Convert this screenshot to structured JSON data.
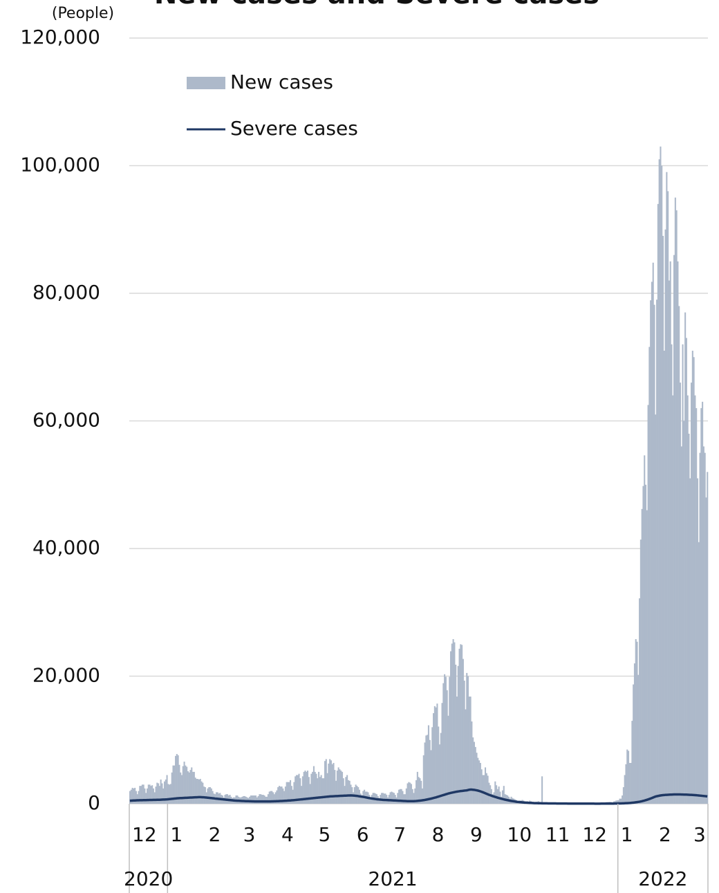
{
  "chart_data": {
    "type": "bar",
    "title": "New cases and Severe cases",
    "y_unit": "(People)",
    "categories": [
      "12",
      "1",
      "2",
      "3",
      "4",
      "5",
      "6",
      "7",
      "8",
      "9",
      "10",
      "11",
      "12",
      "1",
      "2",
      "3"
    ],
    "years": [
      "2020",
      "2021",
      "2022"
    ],
    "ylim": [
      0,
      120000
    ],
    "yticks": [
      0,
      {
        "value": 20000,
        "label": "20,000"
      },
      {
        "value": 40000,
        "label": "40,000"
      },
      {
        "value": 60000,
        "label": "60,000"
      },
      {
        "value": 80000,
        "label": "80,000"
      },
      {
        "value": 100000,
        "label": "100,000"
      },
      {
        "value": 120000,
        "label": "120,000"
      }
    ],
    "grid": true,
    "series": [
      {
        "name": "New cases",
        "type": "bar",
        "color": "#adb9ca",
        "values": [
          [
            2000,
            2200,
            2500,
            2400,
            2500,
            2000,
            1500,
            2000,
            2800,
            2800,
            3000,
            3000,
            2400,
            1700,
            2400,
            3000,
            3000,
            2800,
            2900,
            2400,
            1800,
            2700,
            3300,
            3200,
            2800,
            3800,
            3200,
            2400,
            3500,
            3800,
            4500
          ],
          [
            3100,
            3000,
            3100,
            4900,
            6000,
            6000,
            7500,
            7800,
            7600,
            6100,
            4900,
            4500,
            5900,
            6600,
            6000,
            5800,
            5100,
            4900,
            5300,
            5700,
            5000,
            5000,
            4100,
            3900,
            3900,
            3800,
            3900,
            3500,
            3300,
            2700,
            2600
          ],
          [
            1800,
            2400,
            2600,
            2600,
            2400,
            2000,
            1600,
            1500,
            1800,
            1800,
            1600,
            1700,
            1400,
            1300,
            1000,
            1400,
            1500,
            1500,
            1300,
            1400,
            1100,
            900,
            1000,
            1000,
            1300,
            1300,
            1100,
            1000
          ],
          [
            1000,
            1100,
            1200,
            1200,
            1100,
            1000,
            900,
            1100,
            1300,
            1300,
            1300,
            1300,
            1300,
            1000,
            1200,
            1500,
            1500,
            1400,
            1400,
            1300,
            1100,
            1100,
            1500,
            1900,
            2000,
            2000,
            1800,
            1500,
            1800,
            2100,
            2600
          ],
          [
            2800,
            2700,
            2700,
            2400,
            2000,
            2700,
            3400,
            3400,
            3400,
            3700,
            2800,
            2200,
            3400,
            4300,
            4500,
            4500,
            4700,
            4000,
            2800,
            4300,
            5000,
            5200,
            5000,
            5200,
            4200,
            3100,
            4700,
            5000,
            5900,
            5000
          ],
          [
            4700,
            4000,
            5000,
            4200,
            4500,
            4000,
            4000,
            6700,
            7000,
            4800,
            6300,
            7000,
            6800,
            6200,
            6400,
            5300,
            3600,
            5200,
            5700,
            5400,
            5200,
            5000,
            4000,
            2800,
            4200,
            4500,
            3700,
            3600,
            3000,
            2600,
            1800
          ],
          [
            2600,
            3000,
            2800,
            2600,
            2200,
            1600,
            1200,
            2000,
            2200,
            1900,
            1900,
            1800,
            1400,
            1000,
            1400,
            1700,
            1700,
            1600,
            1500,
            1200,
            900,
            1400,
            1700,
            1700,
            1600,
            1600,
            1400,
            1000,
            1400,
            1800
          ],
          [
            1900,
            1800,
            1700,
            1400,
            1000,
            1700,
            2200,
            2300,
            2300,
            2000,
            1500,
            1500,
            2400,
            3200,
            3400,
            3300,
            3100,
            2300,
            1700,
            2400,
            3700,
            5000,
            4200,
            4000,
            3600,
            2400,
            7600,
            9600,
            10700,
            10800,
            12300
          ],
          [
            10000,
            8400,
            12000,
            14200,
            15300,
            15100,
            15700,
            12100,
            9300,
            11100,
            15800,
            18900,
            20300,
            19900,
            17800,
            13800,
            19900,
            23900,
            25100,
            25800,
            25300,
            21800,
            16800,
            21600,
            24300,
            25000,
            24900,
            22700,
            19300,
            14800,
            20500
          ],
          [
            20000,
            16800,
            16800,
            12900,
            10400,
            9700,
            8900,
            8000,
            7200,
            6800,
            6400,
            5400,
            4500,
            4500,
            5700,
            4800,
            4400,
            3300,
            2900,
            2300,
            1500,
            1800,
            3500,
            2900,
            2300,
            2700,
            1900,
            1100,
            2100,
            2800
          ],
          [
            1500,
            1400,
            1300,
            1100,
            800,
            1100,
            900,
            800,
            700,
            600,
            400,
            400,
            500,
            500,
            600,
            500,
            400,
            300,
            400,
            300,
            500,
            400,
            300,
            300,
            200,
            300,
            300,
            400,
            300,
            250,
            4300
          ],
          [
            90,
            180,
            200,
            160,
            150,
            120,
            150,
            80,
            150,
            200,
            190,
            170,
            160,
            120,
            80,
            130,
            120,
            140,
            130,
            120,
            90,
            50,
            100,
            110,
            120,
            110,
            100,
            90,
            80,
            110
          ],
          [
            130,
            110,
            150,
            110,
            120,
            110,
            100,
            130,
            150,
            140,
            130,
            120,
            120,
            100,
            170,
            170,
            200,
            190,
            200,
            170,
            170,
            260,
            270,
            280,
            300,
            280,
            190,
            370,
            400,
            500,
            530
          ],
          [
            550,
            800,
            800,
            1300,
            2600,
            4500,
            6200,
            8500,
            8300,
            6400,
            6400,
            13000,
            18700,
            22000,
            25800,
            25400,
            20200,
            32200,
            41400,
            46200,
            49800,
            54600,
            50000,
            46000,
            62500,
            71600,
            78900,
            81800,
            84800,
            78200,
            61000
          ],
          [
            79000,
            94000,
            101000,
            103000,
            100000,
            89000,
            71000,
            90000,
            99000,
            96000,
            82000,
            85000,
            72000,
            64000,
            86000,
            95000,
            93000,
            85000,
            78000,
            66000,
            56000,
            72000,
            60000,
            77000,
            73000,
            64000,
            58000,
            51000
          ],
          [
            66000,
            71000,
            70000,
            64000,
            62000,
            51000,
            41000,
            55000,
            62000,
            63000,
            56000,
            55000,
            48000,
            52000
          ]
        ]
      },
      {
        "name": "Severe cases",
        "type": "line",
        "color": "#1f3864",
        "values": [
          [
            480,
            490,
            500,
            510,
            520,
            530,
            540,
            545,
            550,
            555,
            560,
            565,
            570,
            575,
            580,
            585,
            590,
            595,
            600,
            605,
            610,
            615,
            620,
            625,
            630,
            640,
            650,
            660,
            670,
            680,
            690
          ],
          [
            710,
            730,
            750,
            770,
            790,
            810,
            830,
            850,
            870,
            880,
            890,
            900,
            910,
            920,
            930,
            940,
            950,
            960,
            970,
            980,
            990,
            1000,
            1010,
            1020,
            1030,
            1040,
            1040,
            1030,
            1020,
            1010,
            990
          ],
          [
            970,
            950,
            930,
            910,
            890,
            870,
            850,
            820,
            800,
            780,
            760,
            740,
            720,
            700,
            680,
            660,
            640,
            620,
            600,
            580,
            560,
            540,
            520,
            500,
            490,
            480,
            470,
            460
          ],
          [
            450,
            440,
            430,
            420,
            410,
            400,
            400,
            390,
            390,
            380,
            380,
            370,
            370,
            370,
            360,
            360,
            360,
            360,
            360,
            360,
            360,
            360,
            370,
            370,
            370,
            380,
            380,
            390,
            390,
            400,
            410
          ],
          [
            420,
            430,
            440,
            450,
            460,
            470,
            480,
            500,
            510,
            520,
            540,
            550,
            570,
            590,
            610,
            630,
            650,
            670,
            690,
            710,
            730,
            750,
            770,
            790,
            810,
            830,
            850,
            870,
            890,
            910
          ],
          [
            930,
            950,
            970,
            990,
            1010,
            1030,
            1050,
            1070,
            1090,
            1110,
            1130,
            1150,
            1160,
            1170,
            1180,
            1190,
            1200,
            1210,
            1220,
            1230,
            1240,
            1250,
            1260,
            1270,
            1280,
            1290,
            1300,
            1300,
            1310,
            1300,
            1290
          ],
          [
            1270,
            1250,
            1230,
            1200,
            1170,
            1140,
            1110,
            1080,
            1050,
            1010,
            970,
            930,
            890,
            860,
            830,
            800,
            770,
            740,
            710,
            690,
            670,
            650,
            630,
            610,
            600,
            590,
            580,
            570,
            560,
            550
          ],
          [
            540,
            530,
            520,
            510,
            500,
            490,
            480,
            470,
            460,
            450,
            440,
            430,
            420,
            410,
            400,
            400,
            400,
            400,
            410,
            420,
            430,
            450,
            470,
            490,
            510,
            540,
            570,
            600,
            640,
            680,
            720
          ],
          [
            760,
            800,
            850,
            900,
            950,
            1000,
            1060,
            1120,
            1180,
            1240,
            1300,
            1360,
            1420,
            1480,
            1540,
            1600,
            1650,
            1700,
            1740,
            1780,
            1820,
            1860,
            1900,
            1930,
            1960,
            1990,
            2010,
            2030,
            2060,
            2080,
            2100
          ],
          [
            2150,
            2200,
            2220,
            2220,
            2200,
            2180,
            2150,
            2110,
            2070,
            2010,
            1950,
            1880,
            1810,
            1730,
            1650,
            1570,
            1490,
            1410,
            1340,
            1270,
            1200,
            1140,
            1080,
            1020,
            960,
            900,
            850,
            800,
            750,
            700
          ],
          [
            650,
            610,
            570,
            530,
            490,
            450,
            420,
            390,
            360,
            330,
            300,
            280,
            260,
            240,
            220,
            200,
            180,
            170,
            160,
            150,
            140,
            130,
            120,
            110,
            100,
            95,
            90,
            85,
            80,
            75,
            70
          ],
          [
            68,
            66,
            64,
            62,
            60,
            58,
            56,
            54,
            52,
            50,
            48,
            46,
            44,
            42,
            40,
            39,
            38,
            37,
            36,
            35,
            34,
            33,
            32,
            31,
            30,
            29,
            28,
            27,
            26,
            25
          ],
          [
            25,
            25,
            24,
            24,
            23,
            23,
            22,
            22,
            22,
            21,
            21,
            21,
            20,
            20,
            20,
            20,
            20,
            21,
            22,
            23,
            24,
            25,
            26,
            27,
            28,
            29,
            30,
            32,
            35,
            40,
            45
          ],
          [
            50,
            55,
            60,
            65,
            70,
            80,
            90,
            100,
            110,
            120,
            140,
            160,
            180,
            200,
            230,
            260,
            290,
            320,
            360,
            400,
            450,
            500,
            560,
            620,
            680,
            750,
            820,
            900,
            980,
            1060,
            1130
          ],
          [
            1180,
            1220,
            1260,
            1300,
            1330,
            1350,
            1370,
            1390,
            1400,
            1410,
            1420,
            1430,
            1440,
            1450,
            1460,
            1460,
            1460,
            1460,
            1460,
            1460,
            1450,
            1450,
            1440,
            1440,
            1430,
            1420,
            1410,
            1400
          ],
          [
            1390,
            1380,
            1370,
            1360,
            1340,
            1320,
            1300,
            1280,
            1260,
            1240,
            1220,
            1200,
            1180,
            1150
          ]
        ]
      }
    ]
  }
}
